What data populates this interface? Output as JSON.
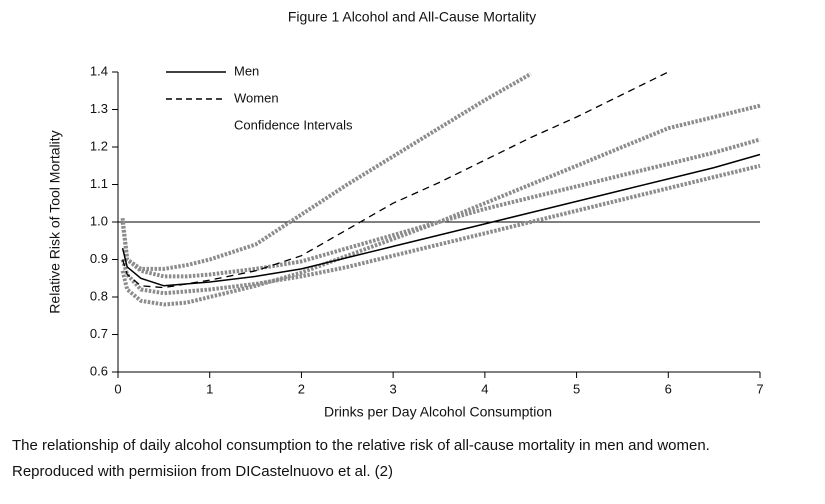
{
  "chart_data": {
    "type": "line",
    "title": "Figure 1 Alcohol and All-Cause Mortality",
    "x_label": "Drinks per Day Alcohol Consumption",
    "y_label": "Relative Risk of Tool Mortality",
    "x": [
      0.05,
      0.1,
      0.25,
      0.5,
      0.75,
      1,
      1.5,
      2,
      2.5,
      3,
      3.5,
      4,
      4.5,
      5,
      5.5,
      6,
      6.5,
      7
    ],
    "series": [
      {
        "name": "Men",
        "color": "#000000",
        "dash": "solid",
        "values": [
          0.93,
          0.88,
          0.85,
          0.83,
          0.835,
          0.84,
          0.855,
          0.875,
          0.905,
          0.935,
          0.965,
          0.995,
          1.025,
          1.055,
          1.085,
          1.115,
          1.145,
          1.18
        ]
      },
      {
        "name": "Women",
        "color": "#000000",
        "dash": "dashed",
        "values": [
          0.9,
          0.86,
          0.83,
          0.825,
          0.835,
          0.845,
          0.87,
          0.91,
          0.98,
          1.05,
          1.105,
          1.165,
          1.225,
          1.28,
          1.34,
          1.4,
          null,
          null
        ]
      },
      {
        "name": "Confidence Intervals",
        "color": "#8c8c8c",
        "dash": "dotted",
        "curves": [
          [
            1.0,
            0.9,
            0.875,
            0.875,
            0.885,
            0.9,
            0.94,
            1.02,
            1.1,
            1.175,
            1.25,
            1.325,
            1.395,
            null,
            null,
            null,
            null,
            null
          ],
          [
            0.87,
            0.82,
            0.79,
            0.78,
            0.785,
            0.8,
            0.83,
            0.865,
            0.91,
            0.955,
            1.0,
            1.05,
            1.1,
            1.15,
            1.2,
            1.25,
            1.28,
            1.31
          ],
          [
            1.01,
            0.9,
            0.87,
            0.855,
            0.855,
            0.86,
            0.875,
            0.895,
            0.93,
            0.965,
            1.0,
            1.035,
            1.065,
            1.095,
            1.125,
            1.155,
            1.185,
            1.22
          ],
          [
            0.9,
            0.86,
            0.82,
            0.81,
            0.815,
            0.82,
            0.835,
            0.855,
            0.88,
            0.91,
            0.94,
            0.97,
            1.0,
            1.03,
            1.06,
            1.09,
            1.12,
            1.15
          ]
        ]
      }
    ],
    "reference_line": 1.0,
    "xlim": [
      0,
      7
    ],
    "xticks": [
      0,
      1,
      2,
      3,
      4,
      5,
      6,
      7
    ],
    "ylim": [
      0.6,
      1.4
    ],
    "yticks": [
      0.6,
      0.7,
      0.8,
      0.9,
      {
        "value": 1,
        "label": "1.0"
      },
      1.1,
      1.2,
      1.3,
      1.4
    ],
    "legend": "top-left"
  },
  "caption": [
    "The relationship of daily alcohol consumption to the relative risk of all-cause mortality in men and women.",
    "Reproduced with permisiion from DICastelnuovo et al. (2)"
  ]
}
